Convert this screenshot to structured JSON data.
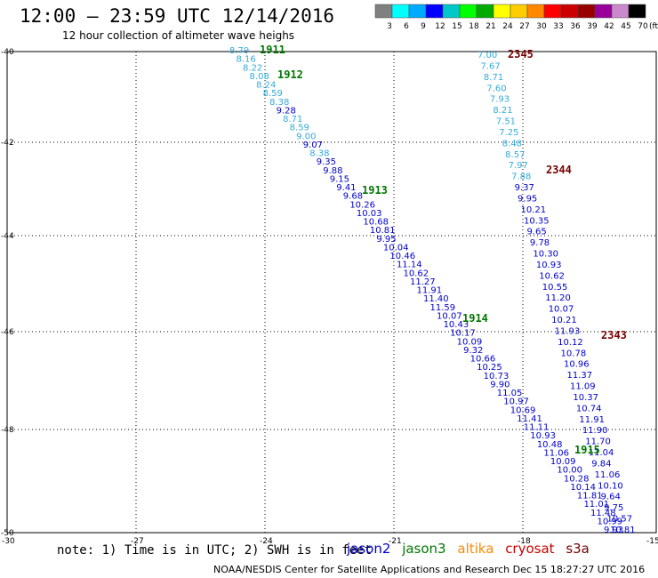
{
  "header": {
    "title": "12:00 – 23:59 UTC 12/14/2016",
    "subtitle": "12 hour collection of altimeter wave heighs"
  },
  "color_scale": {
    "colors": [
      "#808080",
      "#00ffff",
      "#00aaff",
      "#0000ff",
      "#00c8c8",
      "#00ff00",
      "#00aa00",
      "#ffff00",
      "#ffcc00",
      "#ff8800",
      "#ff0000",
      "#cc0000",
      "#990000",
      "#990099",
      "#cc88cc",
      "#000000"
    ],
    "labels": [
      "3",
      "6",
      "9",
      "12",
      "15",
      "18",
      "21",
      "24",
      "27",
      "30",
      "33",
      "36",
      "39",
      "42",
      "45",
      "70",
      "(ft)"
    ]
  },
  "map": {
    "lat_labels": [
      "-40",
      "-42",
      "-44",
      "-46",
      "-48",
      "-50"
    ],
    "lon_labels": [
      "-30",
      "-27",
      "-24",
      "-21",
      "-18",
      "-15"
    ]
  },
  "satellite_colors": {
    "jason2": "#0000cc",
    "jason3": "#007700",
    "altika": "#ff8800",
    "cryosat": "#cc0000",
    "s3a": "#770000",
    "light": "#33aadd"
  },
  "passes": {
    "pass_left": [
      {
        "v": "8.79",
        "c": "light"
      },
      {
        "v": "8.16",
        "c": "light"
      },
      {
        "v": "8.22",
        "c": "light"
      },
      {
        "v": "8.08",
        "c": "light"
      },
      {
        "v": "8.24",
        "c": "light"
      },
      {
        "v": "8.59",
        "c": "light"
      },
      {
        "v": "8.38",
        "c": "light"
      },
      {
        "v": "9.28",
        "c": "jason2"
      },
      {
        "v": "8.71",
        "c": "light"
      },
      {
        "v": "8.59",
        "c": "light"
      },
      {
        "v": "9.00",
        "c": "light"
      },
      {
        "v": "9.07",
        "c": "jason2"
      },
      {
        "v": "8.38",
        "c": "light"
      },
      {
        "v": "9.35",
        "c": "jason2"
      },
      {
        "v": "9.88",
        "c": "jason2"
      },
      {
        "v": "9.15",
        "c": "jason2"
      },
      {
        "v": "9.41",
        "c": "jason2"
      },
      {
        "v": "9.68",
        "c": "jason2"
      },
      {
        "v": "10.26",
        "c": "jason2"
      },
      {
        "v": "10.03",
        "c": "jason2"
      },
      {
        "v": "10.68",
        "c": "jason2"
      },
      {
        "v": "10.81",
        "c": "jason2"
      },
      {
        "v": "9.95",
        "c": "jason2"
      },
      {
        "v": "10.04",
        "c": "jason2"
      },
      {
        "v": "10.46",
        "c": "jason2"
      },
      {
        "v": "11.14",
        "c": "jason2"
      },
      {
        "v": "10.62",
        "c": "jason2"
      },
      {
        "v": "11.27",
        "c": "jason2"
      },
      {
        "v": "11.91",
        "c": "jason2"
      },
      {
        "v": "11.40",
        "c": "jason2"
      },
      {
        "v": "11.59",
        "c": "jason2"
      },
      {
        "v": "10.07",
        "c": "jason2"
      },
      {
        "v": "10.43",
        "c": "jason2"
      },
      {
        "v": "10.17",
        "c": "jason2"
      },
      {
        "v": "10.09",
        "c": "jason2"
      },
      {
        "v": "9.32",
        "c": "jason2"
      },
      {
        "v": "10.66",
        "c": "jason2"
      },
      {
        "v": "10.25",
        "c": "jason2"
      },
      {
        "v": "10.73",
        "c": "jason2"
      },
      {
        "v": "9.90",
        "c": "jason2"
      },
      {
        "v": "11.05",
        "c": "jason2"
      },
      {
        "v": "10.97",
        "c": "jason2"
      },
      {
        "v": "10.69",
        "c": "jason2"
      },
      {
        "v": "11.41",
        "c": "jason2"
      },
      {
        "v": "11.11",
        "c": "jason2"
      },
      {
        "v": "10.93",
        "c": "jason2"
      },
      {
        "v": "10.48",
        "c": "jason2"
      },
      {
        "v": "11.06",
        "c": "jason2"
      },
      {
        "v": "10.09",
        "c": "jason2"
      },
      {
        "v": "10.00",
        "c": "jason2"
      },
      {
        "v": "10.28",
        "c": "jason2"
      },
      {
        "v": "10.14",
        "c": "jason2"
      },
      {
        "v": "11.81",
        "c": "jason2"
      },
      {
        "v": "11.01",
        "c": "jason2"
      },
      {
        "v": "11.48",
        "c": "jason2"
      },
      {
        "v": "10.99",
        "c": "jason2"
      },
      {
        "v": "9.93",
        "c": "jason2"
      }
    ],
    "pass_right": [
      {
        "v": "7.00",
        "c": "light"
      },
      {
        "v": "7.67",
        "c": "light"
      },
      {
        "v": "8.71",
        "c": "light"
      },
      {
        "v": "7.60",
        "c": "light"
      },
      {
        "v": "7.93",
        "c": "light"
      },
      {
        "v": "8.21",
        "c": "light"
      },
      {
        "v": "7.51",
        "c": "light"
      },
      {
        "v": "7.25",
        "c": "light"
      },
      {
        "v": "8.48",
        "c": "light"
      },
      {
        "v": "8.57",
        "c": "light"
      },
      {
        "v": "7.97",
        "c": "light"
      },
      {
        "v": "7.88",
        "c": "light"
      },
      {
        "v": "9.37",
        "c": "jason2"
      },
      {
        "v": "9.95",
        "c": "jason2"
      },
      {
        "v": "10.21",
        "c": "jason2"
      },
      {
        "v": "10.35",
        "c": "jason2"
      },
      {
        "v": "9.65",
        "c": "jason2"
      },
      {
        "v": "9.78",
        "c": "jason2"
      },
      {
        "v": "10.30",
        "c": "jason2"
      },
      {
        "v": "10.93",
        "c": "jason2"
      },
      {
        "v": "10.62",
        "c": "jason2"
      },
      {
        "v": "10.55",
        "c": "jason2"
      },
      {
        "v": "11.20",
        "c": "jason2"
      },
      {
        "v": "10.07",
        "c": "jason2"
      },
      {
        "v": "10.21",
        "c": "jason2"
      },
      {
        "v": "11.93",
        "c": "jason2"
      },
      {
        "v": "10.12",
        "c": "jason2"
      },
      {
        "v": "10.78",
        "c": "jason2"
      },
      {
        "v": "10.96",
        "c": "jason2"
      },
      {
        "v": "11.37",
        "c": "jason2"
      },
      {
        "v": "11.09",
        "c": "jason2"
      },
      {
        "v": "10.37",
        "c": "jason2"
      },
      {
        "v": "10.74",
        "c": "jason2"
      },
      {
        "v": "11.91",
        "c": "jason2"
      },
      {
        "v": "11.90",
        "c": "jason2"
      },
      {
        "v": "11.70",
        "c": "jason2"
      },
      {
        "v": "11.04",
        "c": "jason2"
      },
      {
        "v": "9.84",
        "c": "jason2"
      },
      {
        "v": "11.06",
        "c": "jason2"
      },
      {
        "v": "10.10",
        "c": "jason2"
      },
      {
        "v": "9.64",
        "c": "jason2"
      },
      {
        "v": "9.75",
        "c": "jason2"
      },
      {
        "v": "10.57",
        "c": "jason2"
      },
      {
        "v": "10.81",
        "c": "jason2"
      }
    ]
  },
  "time_labels": [
    {
      "t": "1911",
      "c": "jason3"
    },
    {
      "t": "1912",
      "c": "jason3"
    },
    {
      "t": "1913",
      "c": "jason3"
    },
    {
      "t": "1914",
      "c": "jason3"
    },
    {
      "t": "1915",
      "c": "jason3"
    },
    {
      "t": "2345",
      "c": "s3a"
    },
    {
      "t": "2344",
      "c": "s3a"
    },
    {
      "t": "2343",
      "c": "s3a"
    }
  ],
  "footer": {
    "note": "note: 1) Time is in UTC; 2) SWH is in feet",
    "legend": [
      {
        "name": "jason2",
        "color": "#0000cc"
      },
      {
        "name": "jason3",
        "color": "#007700"
      },
      {
        "name": "altika",
        "color": "#ff8800"
      },
      {
        "name": "cryosat",
        "color": "#cc0000"
      },
      {
        "name": "s3a",
        "color": "#770000"
      }
    ],
    "credit": "NOAA/NESDIS Center for Satellite Applications and Research    Dec 15 18:27:27 UTC 2016"
  }
}
